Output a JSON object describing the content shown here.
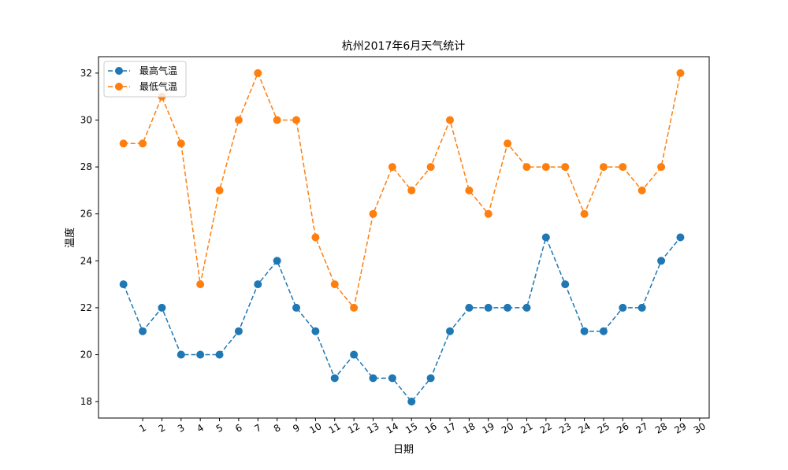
{
  "chart_data": {
    "type": "line",
    "title": "杭州2017年6月天气统计",
    "xlabel": "日期",
    "ylabel": "温度",
    "x": [
      0,
      1,
      2,
      3,
      4,
      5,
      6,
      7,
      8,
      9,
      10,
      11,
      12,
      13,
      14,
      15,
      16,
      17,
      18,
      19,
      20,
      21,
      22,
      23,
      24,
      25,
      26,
      27,
      28,
      29
    ],
    "xticks": [
      1,
      2,
      3,
      4,
      5,
      6,
      7,
      8,
      9,
      10,
      11,
      12,
      13,
      14,
      15,
      16,
      17,
      18,
      19,
      20,
      21,
      22,
      23,
      24,
      25,
      26,
      27,
      28,
      29,
      30
    ],
    "xlim": [
      -1.3,
      30.5
    ],
    "yticks": [
      18,
      20,
      22,
      24,
      26,
      28,
      30,
      32
    ],
    "ylim": [
      17.3,
      32.7
    ],
    "grid": false,
    "legend_position": "top-left",
    "series": [
      {
        "name": "最高气温",
        "color": "#1f77b4",
        "linestyle": "dashed",
        "marker": "circle",
        "values": [
          23,
          21,
          22,
          20,
          20,
          20,
          21,
          23,
          24,
          22,
          21,
          19,
          20,
          19,
          19,
          18,
          19,
          21,
          22,
          22,
          22,
          22,
          25,
          23,
          21,
          21,
          22,
          22,
          24,
          25
        ]
      },
      {
        "name": "最低气温",
        "color": "#ff7f0e",
        "linestyle": "dashed",
        "marker": "circle",
        "values": [
          29,
          29,
          31,
          29,
          23,
          27,
          30,
          32,
          30,
          30,
          25,
          23,
          22,
          26,
          28,
          27,
          28,
          30,
          27,
          26,
          29,
          28,
          28,
          28,
          26,
          28,
          28,
          27,
          28,
          32
        ]
      }
    ]
  }
}
